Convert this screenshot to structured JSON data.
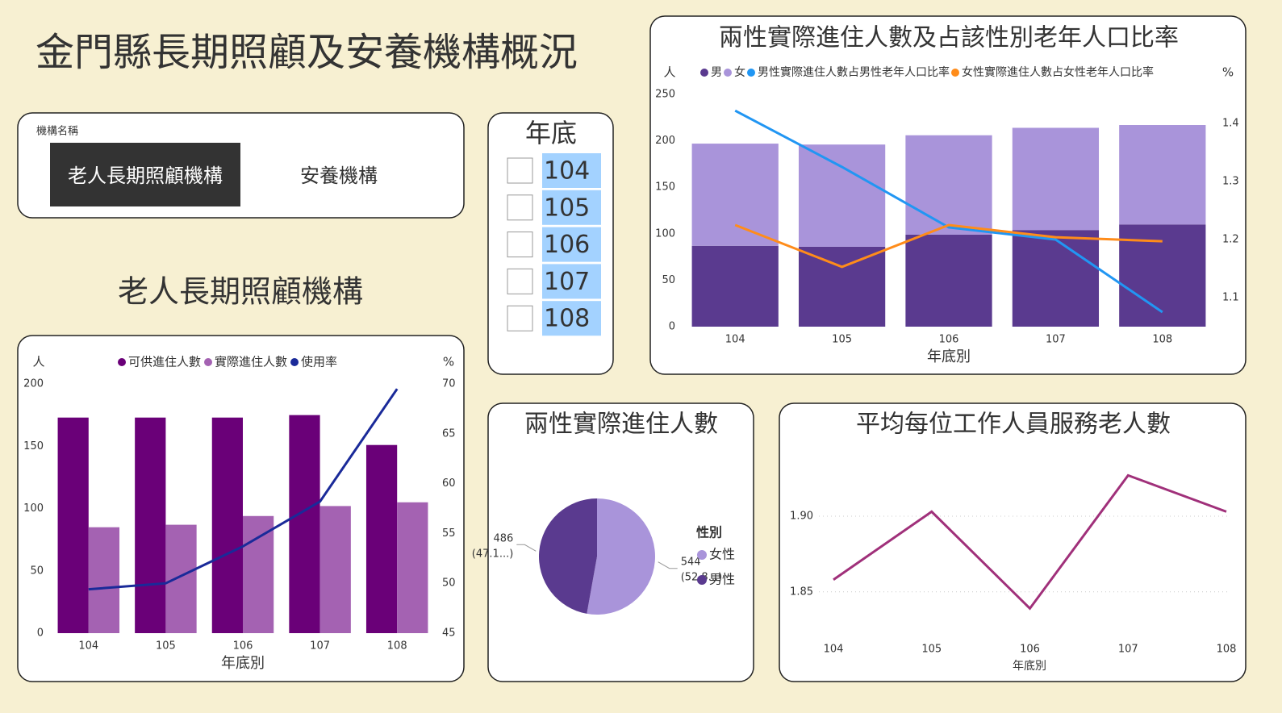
{
  "header": {
    "title": "金門縣長期照顧及安養機構概況"
  },
  "slicer_org": {
    "label": "機構名稱",
    "options": [
      "老人長期照顧機構",
      "安養機構"
    ]
  },
  "slicer_year": {
    "title": "年底",
    "options": [
      "104",
      "105",
      "106",
      "107",
      "108"
    ]
  },
  "section_title": "老人長期照顧機構",
  "chart_data": [
    {
      "type": "bar",
      "y_label": "人",
      "y2_label": "%",
      "x_label": "年底別",
      "categories": [
        "104",
        "105",
        "106",
        "107",
        "108"
      ],
      "series": [
        {
          "name": "可供進住人數",
          "color": "#6a0078",
          "values": [
            173,
            173,
            173,
            175,
            151
          ]
        },
        {
          "name": "實際進住人數",
          "color": "#a462b2",
          "values": [
            85,
            87,
            94,
            102,
            105
          ]
        },
        {
          "name": "使用率",
          "color": "#1a2a99",
          "values": [
            49.4,
            50.0,
            53.7,
            58.2,
            69.5
          ],
          "axis": "y2",
          "type": "line"
        }
      ],
      "ylim": [
        0,
        200
      ],
      "yticks": [
        0,
        50,
        100,
        150,
        200
      ],
      "y2lim": [
        45,
        70
      ],
      "y2ticks": [
        45,
        50,
        55,
        60,
        65,
        70
      ]
    },
    {
      "type": "stacked_bar",
      "title": "兩性實際進住人數及占該性別老年人口比率",
      "y_label": "人",
      "y2_label": "%",
      "x_label": "年底別",
      "categories": [
        "104",
        "105",
        "106",
        "107",
        "108"
      ],
      "series": [
        {
          "name": "男",
          "color": "#5a3a8f",
          "values": [
            87,
            86,
            99,
            104,
            110
          ]
        },
        {
          "name": "女",
          "color": "#a994da",
          "values": [
            110,
            110,
            107,
            110,
            107
          ]
        },
        {
          "name": "男性實際進住人數占男性老年人口比率",
          "color": "#2196f3",
          "values": [
            1.422,
            1.325,
            1.221,
            1.2,
            1.075
          ],
          "axis": "y2",
          "type": "line"
        },
        {
          "name": "女性實際進住人數占女性老年人口比率",
          "color": "#ff8c1a",
          "values": [
            1.225,
            1.153,
            1.225,
            1.204,
            1.197
          ],
          "axis": "y2",
          "type": "line"
        }
      ],
      "ylim": [
        0,
        250
      ],
      "yticks": [
        0,
        50,
        100,
        150,
        200,
        250
      ],
      "y2lim": [
        1.05,
        1.45
      ],
      "y2ticks": [
        1.1,
        1.2,
        1.3,
        1.4
      ]
    },
    {
      "type": "pie",
      "title": "兩性實際進住人數",
      "legend_title": "性別",
      "categories": [
        "女性",
        "男性"
      ],
      "values": [
        544,
        486
      ],
      "value_labels": [
        "544 (52.8...)",
        "486 (47.1...)"
      ],
      "colors": [
        "#a994da",
        "#5a3a8f"
      ]
    },
    {
      "type": "line",
      "title": "平均每位工作人員服務老人數",
      "x_label": "年底別",
      "categories": [
        "104",
        "105",
        "106",
        "107",
        "108"
      ],
      "values": [
        1.858,
        1.903,
        1.839,
        1.927,
        1.903
      ],
      "color": "#a0307a",
      "ylim": [
        1.82,
        1.94
      ],
      "yticks": [
        1.85,
        {
          "value": 1.9,
          "label": "1.90"
        }
      ],
      "grid": true
    }
  ]
}
